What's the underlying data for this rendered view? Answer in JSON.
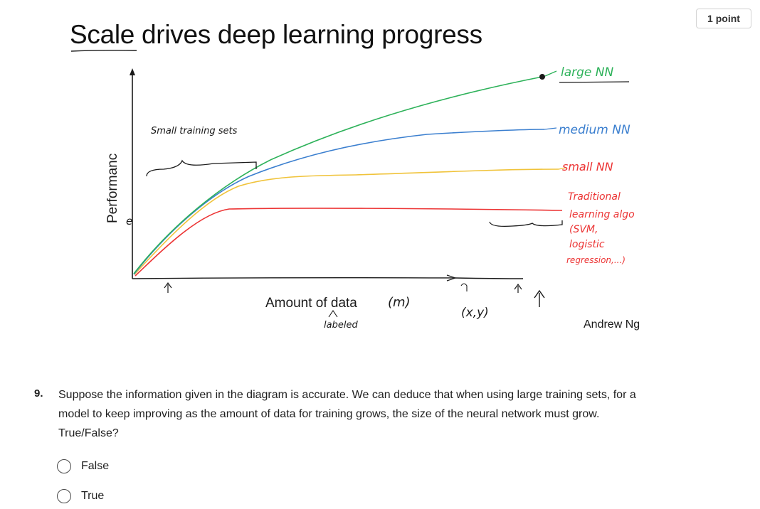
{
  "points_badge": "1 point",
  "slide": {
    "title": "Scale drives deep learning progress",
    "y_axis_label": "Performanc",
    "y_axis_handwritten": "e",
    "x_axis_label": "Amount of data",
    "x_axis_handwritten_m": "(m)",
    "labeled_note": "labeled",
    "xy_note": "(x,y)",
    "small_training_sets_note": "Small training sets",
    "author": "Andrew Ng",
    "curve_labels": {
      "large": "large NN",
      "medium": "medium NN",
      "small": "small NN",
      "traditional": [
        "Traditional",
        "learning algo",
        "(SVM,",
        "logistic",
        "regression,...)"
      ]
    },
    "colors": {
      "large": "#2eb25a",
      "medium": "#3b7fcf",
      "small": "#f0c33a",
      "traditional": "#ec3434",
      "ink": "#1a1a1a"
    }
  },
  "question": {
    "number": "9.",
    "text": "Suppose the information given in the diagram is accurate. We can deduce that when using large training sets, for a model to keep improving as the amount of data for training grows, the size of the neural network must grow. True/False?",
    "options": [
      "False",
      "True"
    ]
  }
}
